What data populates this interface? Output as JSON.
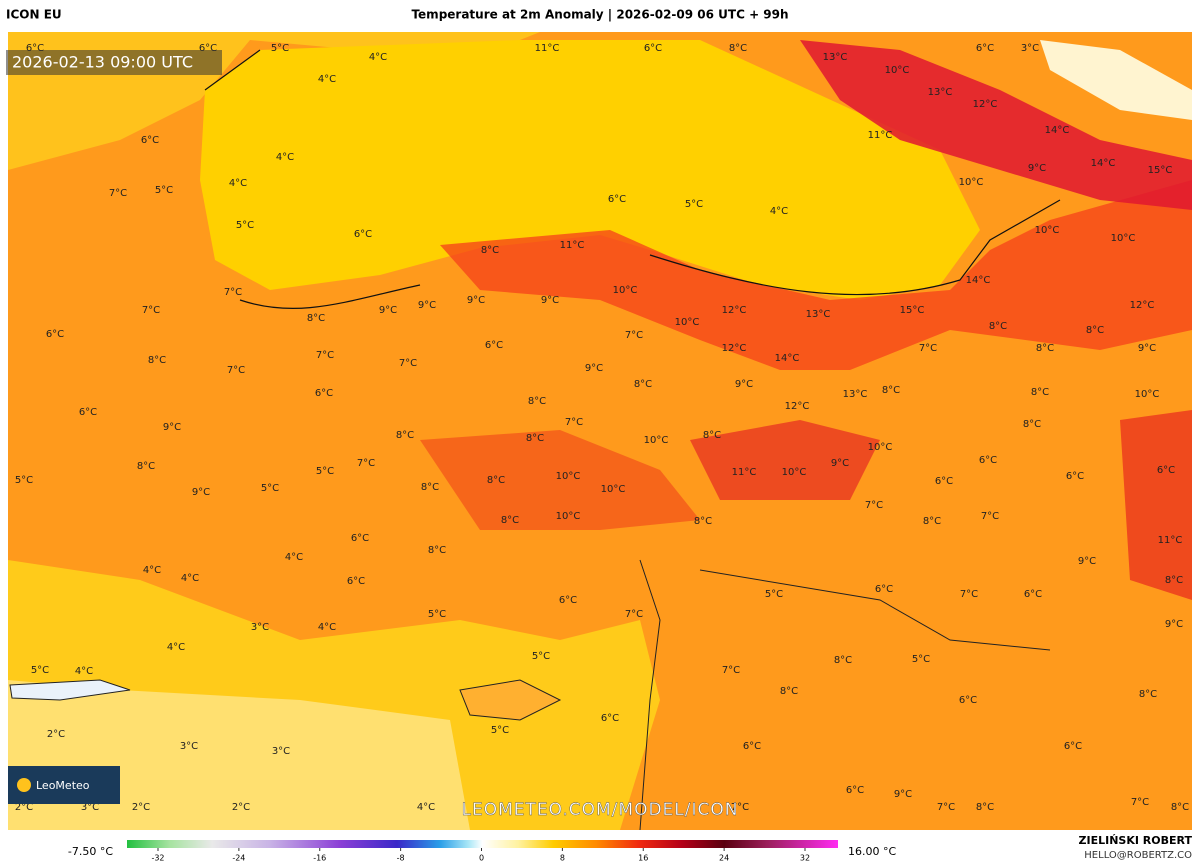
{
  "header": {
    "model": "ICON EU",
    "title": "Temperature at 2m Anomaly | 2026-02-09 06 UTC + 99h"
  },
  "valid_time": "2026-02-13 09:00 UTC",
  "logo": "LeoMeteo",
  "watermark": "LEOMETEO.COM/MODEL/ICON",
  "map_labels": [
    "6°C",
    "6°C",
    "5°C",
    "4°C",
    "11°C",
    "6°C",
    "8°C",
    "13°C",
    "6°C",
    "3°C",
    "4°C",
    "10°C",
    "13°C",
    "12°C",
    "6°C",
    "4°C",
    "14°C",
    "11°C",
    "4°C",
    "7°C",
    "5°C",
    "10°C",
    "9°C",
    "14°C",
    "15°C",
    "6°C",
    "5°C",
    "4°C",
    "5°C",
    "6°C",
    "10°C",
    "10°C",
    "11°C",
    "8°C",
    "7°C",
    "7°C",
    "9°C",
    "9°C",
    "9°C",
    "9°C",
    "10°C",
    "14°C",
    "12°C",
    "8°C",
    "10°C",
    "12°C",
    "13°C",
    "15°C",
    "8°C",
    "8°C",
    "6°C",
    "8°C",
    "7°C",
    "7°C",
    "6°C",
    "7°C",
    "12°C",
    "14°C",
    "7°C",
    "8°C",
    "9°C",
    "7°C",
    "9°C",
    "8°C",
    "9°C",
    "8°C",
    "13°C",
    "8°C",
    "10°C",
    "6°C",
    "6°C",
    "8°C",
    "12°C",
    "9°C",
    "8°C",
    "7°C",
    "8°C",
    "10°C",
    "8°C",
    "10°C",
    "8°C",
    "8°C",
    "7°C",
    "5°C",
    "10°C",
    "11°C",
    "10°C",
    "9°C",
    "6°C",
    "6°C",
    "5°C",
    "5°C",
    "9°C",
    "8°C",
    "8°C",
    "10°C",
    "6°C",
    "6°C",
    "7°C",
    "8°C",
    "10°C",
    "8°C",
    "8°C",
    "7°C",
    "6°C",
    "11°C",
    "4°C",
    "8°C",
    "4°C",
    "4°C",
    "9°C",
    "6°C",
    "8°C",
    "6°C",
    "7°C",
    "5°C",
    "6°C",
    "7°C",
    "6°C",
    "5°C",
    "3°C",
    "4°C",
    "9°C",
    "4°C",
    "5°C",
    "8°C",
    "5°C",
    "5°C",
    "4°C",
    "7°C",
    "8°C",
    "8°C",
    "6°C",
    "6°C",
    "5°C",
    "2°C",
    "3°C",
    "3°C",
    "6°C",
    "6°C",
    "2°C",
    "3°C",
    "2°C",
    "2°C",
    "4°C",
    "9°C",
    "6°C",
    "7°C",
    "7°C",
    "8°C",
    "7°C",
    "8°C"
  ],
  "colorbar": {
    "min_label": "-7.50 °C",
    "max_label": "16.00 °C",
    "ticks": [
      -32,
      -24,
      -16,
      -8,
      0,
      8,
      16,
      24,
      32
    ]
  },
  "author": {
    "name": "ZIELIŃSKI ROBERT",
    "email": "HELLO@ROBERTZ.CO"
  }
}
